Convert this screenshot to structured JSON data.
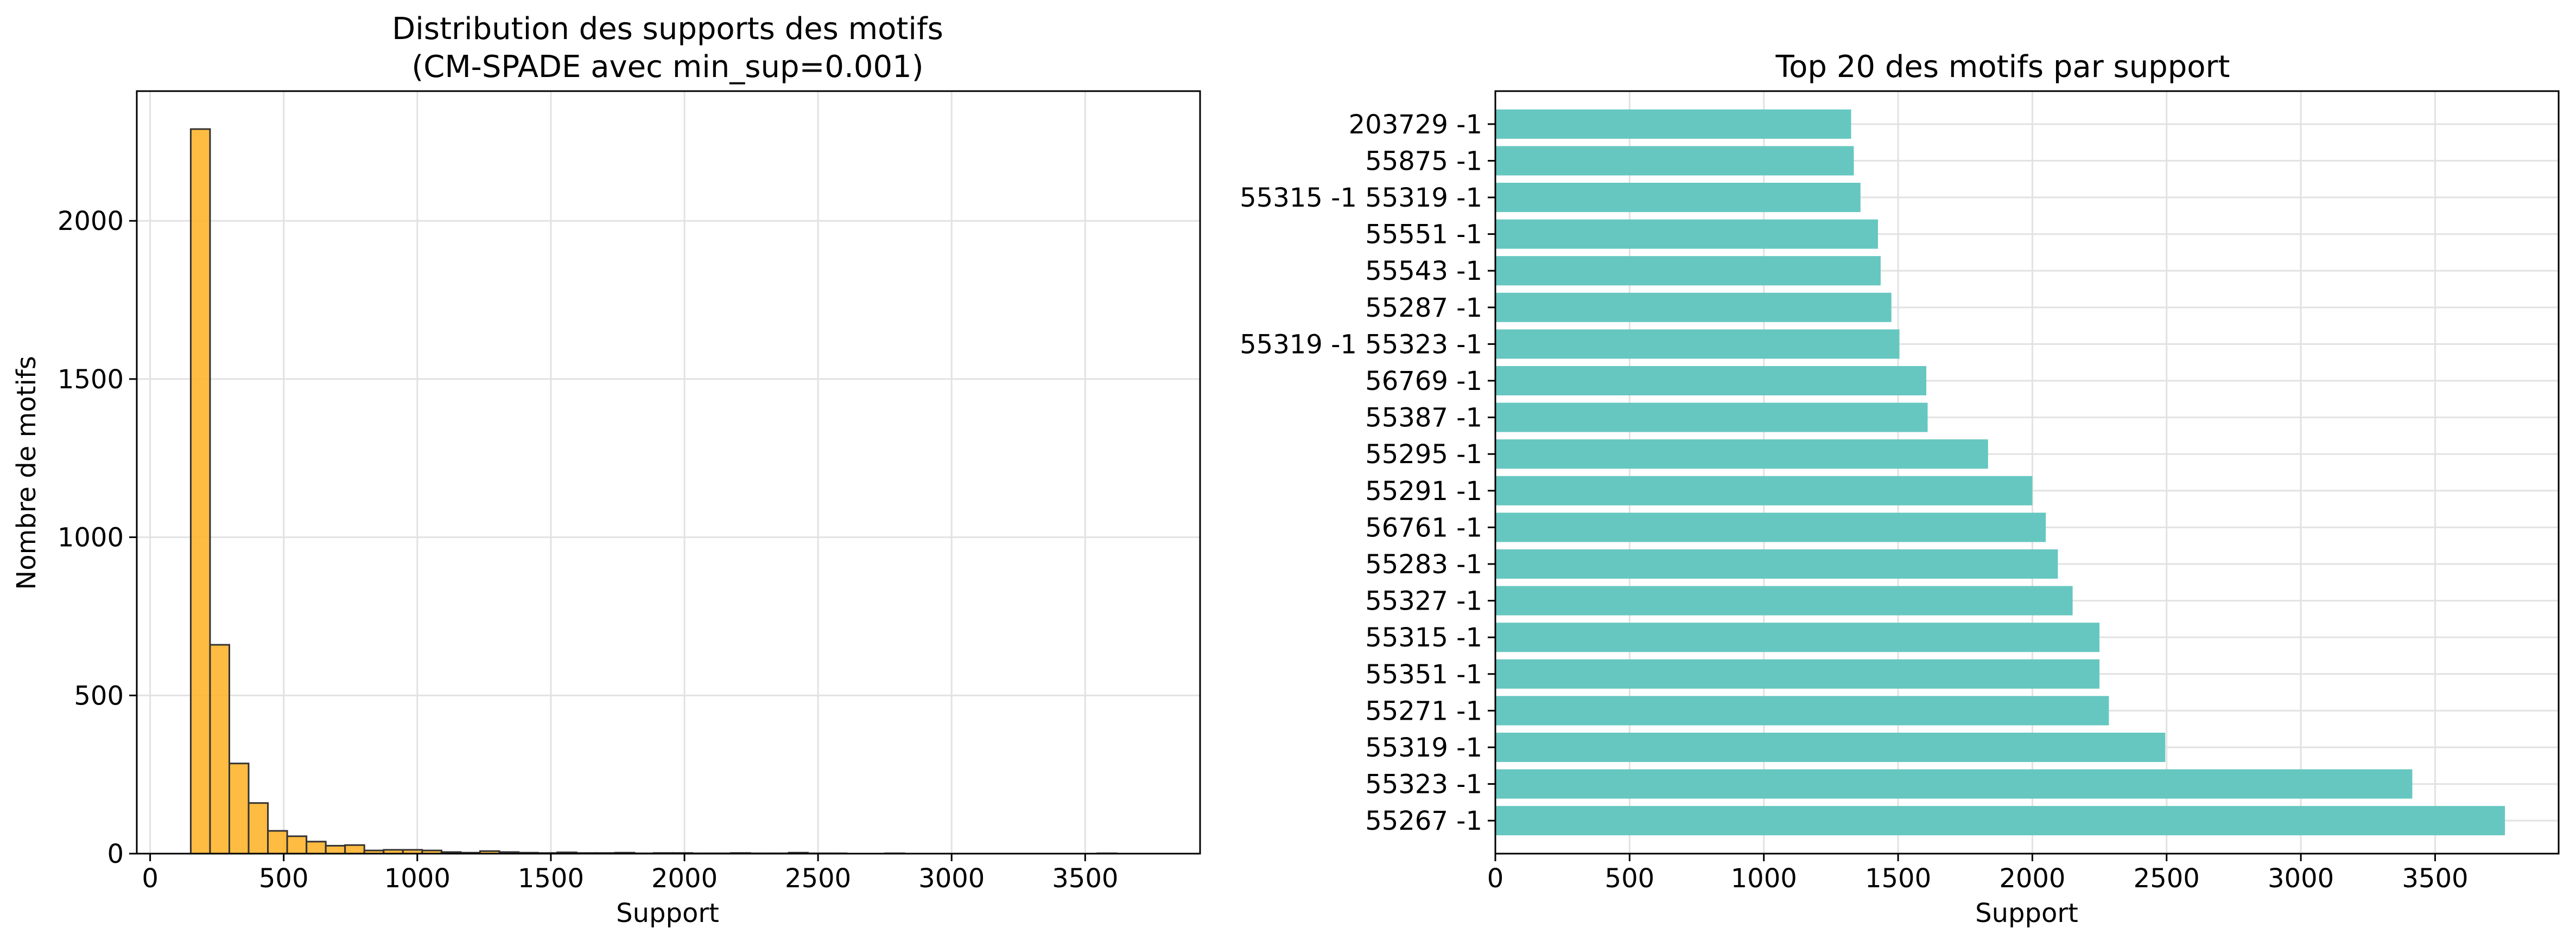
{
  "chart_data": [
    {
      "type": "bar",
      "title": "Distribution des supports des motifs\n(CM-SPADE avec min_sup=0.001)",
      "xlabel": "Support",
      "ylabel": "Nombre de motifs",
      "xlim": [
        -50,
        3930
      ],
      "ylim": [
        0,
        2410
      ],
      "xticks": [
        0,
        500,
        1000,
        1500,
        2000,
        2500,
        3000,
        3500
      ],
      "yticks": [
        0,
        500,
        1000,
        1500,
        2000
      ],
      "grid": true,
      "color": "#FFB52E",
      "edgecolor": "#333333",
      "bins": {
        "start": 152,
        "width": 72.2,
        "counts": [
          2290,
          660,
          285,
          160,
          72,
          55,
          38,
          25,
          27,
          10,
          12,
          12,
          10,
          5,
          3,
          8,
          5,
          3,
          2,
          4,
          2,
          2,
          3,
          1,
          2,
          2,
          1,
          1,
          2,
          1,
          1,
          3,
          1,
          1,
          0,
          0,
          1,
          0,
          0,
          0,
          0,
          0,
          0,
          0,
          0,
          0,
          0,
          1,
          0,
          0
        ]
      }
    },
    {
      "type": "bar",
      "orientation": "horizontal",
      "title": "Top 20 des motifs par support",
      "xlabel": "Support",
      "ylabel": "",
      "xlim": [
        0,
        3960
      ],
      "xticks": [
        0,
        500,
        1000,
        1500,
        2000,
        2500,
        3000,
        3500
      ],
      "grid": true,
      "color": "#66C7C0",
      "categories": [
        "55267 -1",
        "55323 -1",
        "55319 -1",
        "55271 -1",
        "55351 -1",
        "55315 -1",
        "55327 -1",
        "55283 -1",
        "56761 -1",
        "55291 -1",
        "55295 -1",
        "55387 -1",
        "56769 -1",
        "55319 -1 55323 -1",
        "55287 -1",
        "55543 -1",
        "55551 -1",
        "55315 -1 55319 -1",
        "55875 -1",
        "203729 -1"
      ],
      "values": [
        3760,
        3415,
        2495,
        2285,
        2250,
        2250,
        2150,
        2095,
        2050,
        2000,
        1835,
        1610,
        1605,
        1505,
        1475,
        1435,
        1425,
        1360,
        1335,
        1325
      ]
    }
  ]
}
